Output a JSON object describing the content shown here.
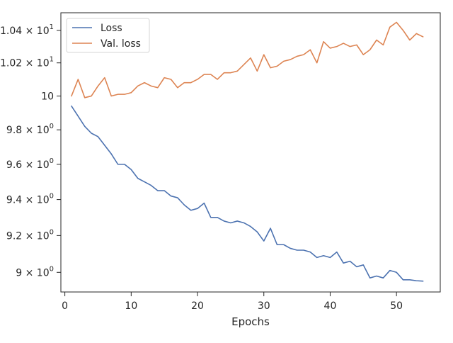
{
  "chart_data": {
    "type": "line",
    "xlabel": "Epochs",
    "ylabel": "",
    "xlim": [
      -0.6,
      56.6
    ],
    "ylim": [
      8.895,
      10.51
    ],
    "yscale": "log",
    "grid": false,
    "legend": "top-left",
    "x_ticks": [
      {
        "value": 0,
        "label": "0"
      },
      {
        "value": 10,
        "label": "10"
      },
      {
        "value": 20,
        "label": "20"
      },
      {
        "value": 30,
        "label": "30"
      },
      {
        "value": 40,
        "label": "40"
      },
      {
        "value": 50,
        "label": "50"
      }
    ],
    "y_ticks": [
      {
        "value": 9.0,
        "base": "9",
        "exp": "0"
      },
      {
        "value": 9.2,
        "base": "9.2",
        "exp": "0"
      },
      {
        "value": 9.4,
        "base": "9.4",
        "exp": "0"
      },
      {
        "value": 9.6,
        "base": "9.6",
        "exp": "0"
      },
      {
        "value": 9.8,
        "base": "9.8",
        "exp": "0"
      },
      {
        "value": 10.0,
        "base": "10",
        "exp": ""
      },
      {
        "value": 10.2,
        "base": "1.02",
        "exp": "1"
      },
      {
        "value": 10.4,
        "base": "1.04",
        "exp": "1"
      }
    ],
    "x": [
      1,
      2,
      3,
      4,
      5,
      6,
      7,
      8,
      9,
      10,
      11,
      12,
      13,
      14,
      15,
      16,
      17,
      18,
      19,
      20,
      21,
      22,
      23,
      24,
      25,
      26,
      27,
      28,
      29,
      30,
      31,
      32,
      33,
      34,
      35,
      36,
      37,
      38,
      39,
      40,
      41,
      42,
      43,
      44,
      45,
      46,
      47,
      48,
      49,
      50,
      51,
      52,
      53,
      54
    ],
    "series": [
      {
        "name": "Loss",
        "color": "#4c72b0",
        "values": [
          9.94,
          9.88,
          9.82,
          9.78,
          9.76,
          9.71,
          9.66,
          9.6,
          9.6,
          9.57,
          9.52,
          9.5,
          9.48,
          9.45,
          9.45,
          9.42,
          9.41,
          9.37,
          9.34,
          9.35,
          9.38,
          9.3,
          9.3,
          9.28,
          9.27,
          9.28,
          9.27,
          9.25,
          9.22,
          9.17,
          9.24,
          9.15,
          9.15,
          9.13,
          9.12,
          9.12,
          9.11,
          9.08,
          9.09,
          9.08,
          9.11,
          9.05,
          9.06,
          9.03,
          9.04,
          8.97,
          8.98,
          8.97,
          9.01,
          9.0,
          8.96,
          8.96,
          8.955,
          8.953
        ]
      },
      {
        "name": "Val. loss",
        "color": "#dd8452",
        "values": [
          10.0,
          10.1,
          9.99,
          10.0,
          10.06,
          10.11,
          10.0,
          10.01,
          10.01,
          10.02,
          10.06,
          10.08,
          10.06,
          10.05,
          10.11,
          10.1,
          10.05,
          10.08,
          10.08,
          10.1,
          10.13,
          10.13,
          10.1,
          10.14,
          10.14,
          10.15,
          10.19,
          10.23,
          10.15,
          10.25,
          10.17,
          10.18,
          10.21,
          10.22,
          10.24,
          10.25,
          10.28,
          10.2,
          10.33,
          10.29,
          10.3,
          10.32,
          10.3,
          10.31,
          10.25,
          10.28,
          10.34,
          10.31,
          10.42,
          10.45,
          10.4,
          10.34,
          10.38,
          10.36
        ]
      }
    ]
  }
}
